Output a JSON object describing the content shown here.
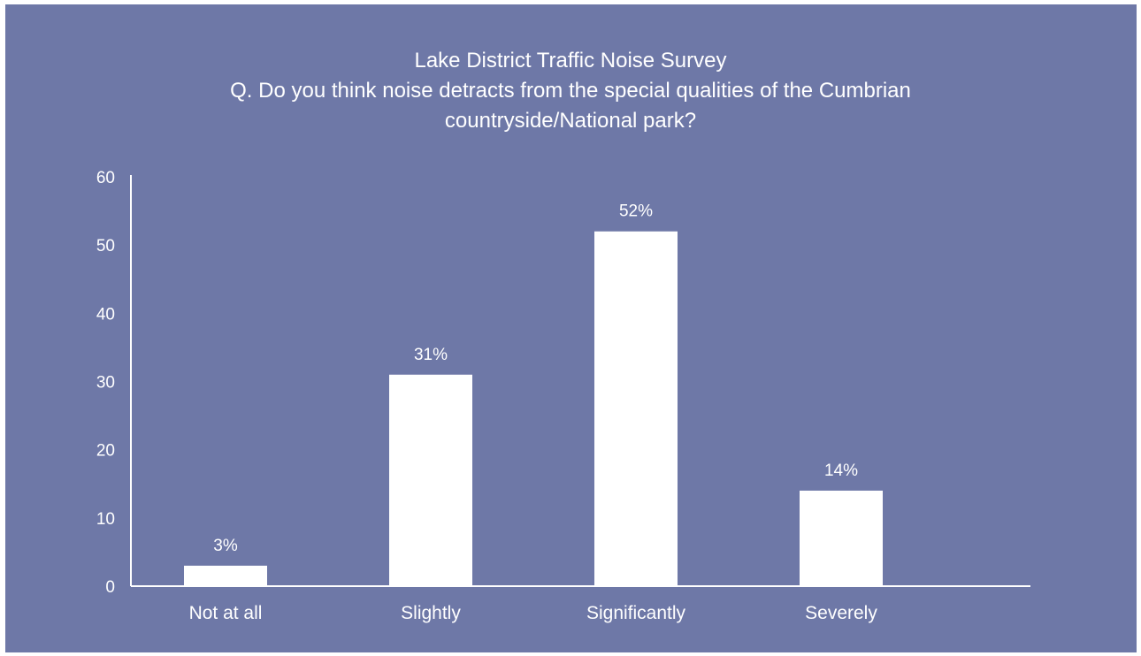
{
  "chart_data": {
    "type": "bar",
    "title": "Lake District Traffic Noise Survey",
    "subtitle_lines": [
      "Q. Do you think noise detracts from the special qualities of the Cumbrian",
      "countryside/National park?"
    ],
    "categories": [
      "Not at all",
      "Slightly",
      "Significantly",
      "Severely"
    ],
    "values": [
      3,
      31,
      52,
      14
    ],
    "data_labels": [
      "3%",
      "31%",
      "52%",
      "14%"
    ],
    "ylim": [
      0,
      60
    ],
    "yticks": [
      0,
      10,
      20,
      30,
      40,
      50,
      60
    ],
    "xlabel": "",
    "ylabel": "",
    "grid": false,
    "legend": "none"
  },
  "colors": {
    "background": "#6e78a7",
    "bar": "#ffffff",
    "text": "#ffffff",
    "axis": "#ffffff"
  }
}
